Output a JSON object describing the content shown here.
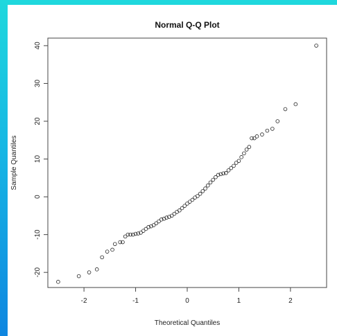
{
  "colors": {
    "background_gradient_top": "#1fd8dd",
    "background_gradient_bottom": "#0f86e0",
    "plot_background": "#ffffff",
    "point_stroke": "#222222",
    "axis_color": "#444444"
  },
  "chart_data": {
    "type": "scatter",
    "title": "Normal Q-Q Plot",
    "xlabel": "Theoretical Quantiles",
    "ylabel": "Sample Quantiles",
    "xlim": [
      -2.7,
      2.7
    ],
    "ylim": [
      -24,
      42
    ],
    "xticks": [
      -2,
      -1,
      0,
      1,
      2
    ],
    "yticks": [
      -20,
      -10,
      0,
      10,
      20,
      30,
      40
    ],
    "xtick_labels": [
      "-2",
      "-1",
      "0",
      "1",
      "2"
    ],
    "ytick_labels": [
      "-20",
      "-10",
      "0",
      "10",
      "20",
      "30",
      "40"
    ],
    "grid": false,
    "marker": "open-circle",
    "points": [
      [
        -2.5,
        -22.5
      ],
      [
        -2.1,
        -21
      ],
      [
        -1.9,
        -20
      ],
      [
        -1.75,
        -19.2
      ],
      [
        -1.65,
        -16
      ],
      [
        -1.55,
        -14.5
      ],
      [
        -1.45,
        -14
      ],
      [
        -1.4,
        -12.5
      ],
      [
        -1.3,
        -12
      ],
      [
        -1.25,
        -12
      ],
      [
        -1.2,
        -10.5
      ],
      [
        -1.15,
        -10
      ],
      [
        -1.1,
        -10
      ],
      [
        -1.05,
        -10
      ],
      [
        -1.0,
        -9.8
      ],
      [
        -0.95,
        -9.7
      ],
      [
        -0.9,
        -9.5
      ],
      [
        -0.85,
        -9
      ],
      [
        -0.8,
        -8.5
      ],
      [
        -0.75,
        -8
      ],
      [
        -0.7,
        -7.8
      ],
      [
        -0.65,
        -7.5
      ],
      [
        -0.6,
        -7
      ],
      [
        -0.55,
        -6.5
      ],
      [
        -0.5,
        -6
      ],
      [
        -0.45,
        -5.8
      ],
      [
        -0.4,
        -5.5
      ],
      [
        -0.35,
        -5.3
      ],
      [
        -0.3,
        -5
      ],
      [
        -0.25,
        -4.5
      ],
      [
        -0.2,
        -4
      ],
      [
        -0.15,
        -3.6
      ],
      [
        -0.1,
        -3
      ],
      [
        -0.05,
        -2.4
      ],
      [
        0.0,
        -1.8
      ],
      [
        0.05,
        -1.3
      ],
      [
        0.1,
        -0.8
      ],
      [
        0.15,
        -0.2
      ],
      [
        0.2,
        0.2
      ],
      [
        0.25,
        0.8
      ],
      [
        0.3,
        1.5
      ],
      [
        0.35,
        2.2
      ],
      [
        0.4,
        3
      ],
      [
        0.45,
        3.8
      ],
      [
        0.5,
        4.5
      ],
      [
        0.55,
        5.2
      ],
      [
        0.6,
        5.8
      ],
      [
        0.65,
        6
      ],
      [
        0.7,
        6.2
      ],
      [
        0.75,
        6.3
      ],
      [
        0.8,
        7
      ],
      [
        0.85,
        7.6
      ],
      [
        0.9,
        8.2
      ],
      [
        0.95,
        9
      ],
      [
        1.0,
        9.5
      ],
      [
        1.05,
        10.5
      ],
      [
        1.1,
        11.5
      ],
      [
        1.15,
        12.5
      ],
      [
        1.2,
        13.2
      ],
      [
        1.25,
        15.5
      ],
      [
        1.3,
        15.5
      ],
      [
        1.35,
        16
      ],
      [
        1.45,
        16.5
      ],
      [
        1.55,
        17.5
      ],
      [
        1.65,
        18
      ],
      [
        1.75,
        20
      ],
      [
        1.9,
        23.2
      ],
      [
        2.1,
        24.5
      ],
      [
        2.5,
        40
      ]
    ]
  }
}
